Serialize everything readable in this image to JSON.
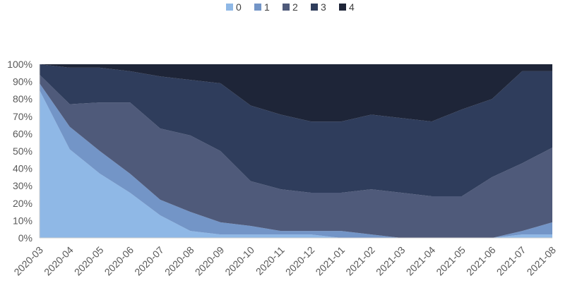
{
  "chart_data": {
    "type": "area",
    "stacked": "percent",
    "title": "",
    "xlabel": "",
    "ylabel": "",
    "legend_position": "top",
    "grid": false,
    "ylim": [
      0,
      100
    ],
    "y_ticks": [
      "0%",
      "10%",
      "20%",
      "30%",
      "40%",
      "50%",
      "60%",
      "70%",
      "80%",
      "90%",
      "100%"
    ],
    "categories": [
      "2020-03",
      "2020-04",
      "2020-05",
      "2020-06",
      "2020-07",
      "2020-08",
      "2020-09",
      "2020-10",
      "2020-11",
      "2020-12",
      "2021-01",
      "2021-02",
      "2021-03",
      "2021-04",
      "2021-05",
      "2021-06",
      "2021-07",
      "2021-08"
    ],
    "series": [
      {
        "name": "0",
        "color": "#8fb8e6",
        "values": [
          85,
          51,
          37,
          26,
          13,
          4,
          2,
          2,
          2,
          2,
          0,
          0,
          0,
          0,
          0,
          0,
          2,
          2
        ]
      },
      {
        "name": "1",
        "color": "#7395c7",
        "values": [
          4,
          13,
          13,
          11,
          9,
          11,
          7,
          5,
          2,
          2,
          4,
          2,
          0,
          0,
          0,
          0,
          2,
          7
        ]
      },
      {
        "name": "2",
        "color": "#4f5a7a",
        "values": [
          5,
          13,
          28,
          41,
          41,
          44,
          41,
          26,
          24,
          22,
          22,
          26,
          26,
          24,
          24,
          35,
          39,
          43
        ]
      },
      {
        "name": "3",
        "color": "#2f3d5c",
        "values": [
          6,
          21,
          20,
          18,
          30,
          32,
          39,
          44,
          43,
          41,
          41,
          43,
          43,
          43,
          50,
          45,
          53,
          44
        ]
      },
      {
        "name": "4",
        "color": "#1e2538",
        "values": [
          0,
          2,
          2,
          4,
          7,
          9,
          11,
          24,
          29,
          33,
          33,
          29,
          31,
          33,
          26,
          20,
          4,
          4
        ]
      }
    ]
  }
}
